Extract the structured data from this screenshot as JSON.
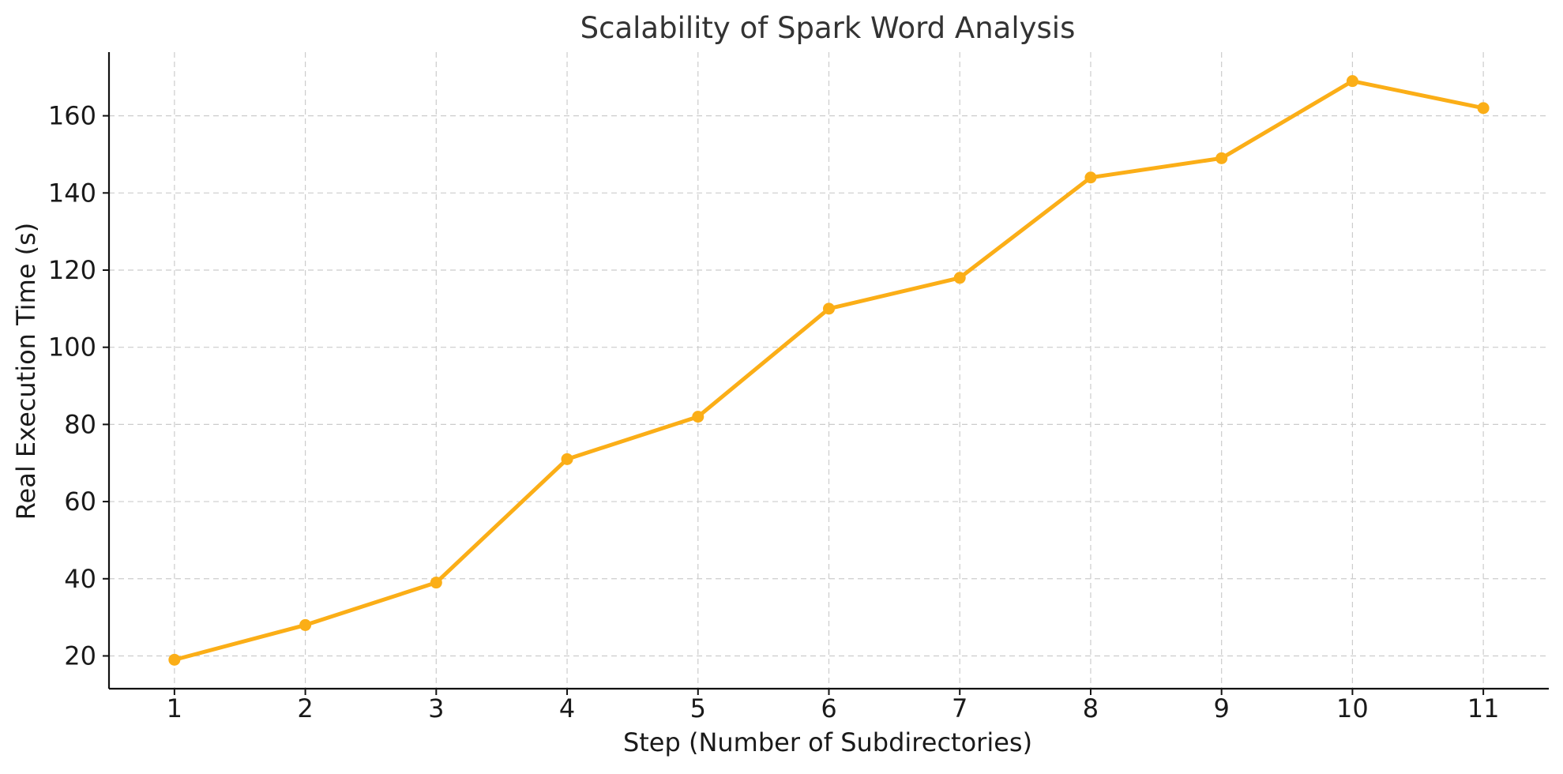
{
  "chart_data": {
    "type": "line",
    "title": "Scalability of Spark Word Analysis",
    "xlabel": "Step (Number of Subdirectories)",
    "ylabel": "Real Execution Time (s)",
    "x": [
      1,
      2,
      3,
      4,
      5,
      6,
      7,
      8,
      9,
      10,
      11
    ],
    "series": [
      {
        "values": [
          19,
          28,
          39,
          71,
          82,
          110,
          118,
          144,
          149,
          169,
          162
        ],
        "color": "#FBAE17",
        "marker": "circle"
      }
    ],
    "xlim": [
      0.5,
      11.5
    ],
    "ylim": [
      11.5,
      176.5
    ],
    "xticks": [
      1,
      2,
      3,
      4,
      5,
      6,
      7,
      8,
      9,
      10,
      11
    ],
    "yticks": [
      20,
      40,
      60,
      80,
      100,
      120,
      140,
      160
    ],
    "grid": true,
    "grid_style": "dashed",
    "legend": false
  }
}
